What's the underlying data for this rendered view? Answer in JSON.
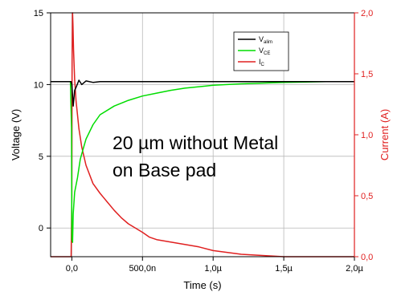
{
  "chart_data": {
    "type": "line",
    "xlabel": "Time (s)",
    "ylabel_left": "Voltage (V)",
    "ylabel_right": "Current (A)",
    "xlim": [
      -1.5e-07,
      2e-06
    ],
    "ylim_left": [
      -2,
      15
    ],
    "ylim_right": [
      0,
      2.0
    ],
    "x_ticks": [
      {
        "value": 0,
        "label": "0,0"
      },
      {
        "value": 5e-07,
        "label": "500,0n"
      },
      {
        "value": 1e-06,
        "label": "1,0µ"
      },
      {
        "value": 1.5e-06,
        "label": "1,5µ"
      },
      {
        "value": 2e-06,
        "label": "2,0µ"
      }
    ],
    "y_ticks_left": [
      {
        "value": 0,
        "label": "0"
      },
      {
        "value": 5,
        "label": "5"
      },
      {
        "value": 10,
        "label": "10"
      },
      {
        "value": 15,
        "label": "15"
      }
    ],
    "y_ticks_right": [
      {
        "value": 0.0,
        "label": "0,0"
      },
      {
        "value": 0.5,
        "label": "0,5"
      },
      {
        "value": 1.0,
        "label": "1,0"
      },
      {
        "value": 1.5,
        "label": "1,5"
      },
      {
        "value": 2.0,
        "label": "2,0"
      }
    ],
    "grid": true,
    "legend_position": "top-right",
    "annotation": [
      "20 µm without Metal",
      "on Base pad"
    ],
    "series": [
      {
        "name": "V_alim",
        "label_main": "V",
        "label_sub": "alim",
        "axis": "left",
        "color": "#000000",
        "x": [
          -1.5e-07,
          -5e-09,
          0,
          1e-08,
          2e-08,
          3e-08,
          5e-08,
          7e-08,
          1e-07,
          1.5e-07,
          2e-07,
          3e-07,
          5e-07,
          1e-06,
          1.5e-06,
          2e-06
        ],
        "y": [
          10.2,
          10.2,
          10.0,
          8.5,
          9.6,
          9.8,
          10.3,
          10.0,
          10.25,
          10.15,
          10.2,
          10.2,
          10.2,
          10.2,
          10.2,
          10.2
        ]
      },
      {
        "name": "V_CE",
        "label_main": "V",
        "label_sub": "CE",
        "axis": "left",
        "color": "#00dd00",
        "x": [
          -1.5e-07,
          -1e-08,
          -2e-09,
          0,
          5e-09,
          1e-08,
          2e-08,
          4e-08,
          6e-08,
          8e-08,
          1e-07,
          1.5e-07,
          2e-07,
          3e-07,
          4e-07,
          5e-07,
          6e-07,
          7e-07,
          8e-07,
          1e-06,
          1.2e-06,
          1.5e-06,
          1.8e-06,
          2e-06
        ],
        "y": [
          10.2,
          10.2,
          7.0,
          -0.8,
          -1.0,
          1.0,
          2.5,
          3.5,
          4.8,
          5.5,
          6.2,
          7.2,
          7.9,
          8.5,
          8.9,
          9.2,
          9.4,
          9.6,
          9.75,
          9.95,
          10.05,
          10.15,
          10.2,
          10.2
        ]
      },
      {
        "name": "I_C",
        "label_main": "I",
        "label_sub": "C",
        "axis": "right",
        "color": "#e02020",
        "x": [
          -1.5e-07,
          -5e-09,
          0,
          2e-09,
          5e-09,
          8e-09,
          1.2e-08,
          2e-08,
          3e-08,
          5e-08,
          7e-08,
          1e-07,
          1.5e-07,
          2e-07,
          2.5e-07,
          3e-07,
          3.5e-07,
          4e-07,
          5e-07,
          5.5e-07,
          6e-07,
          7e-07,
          8e-07,
          9e-07,
          1e-06,
          1.2e-06,
          1.5e-06,
          2e-06
        ],
        "y": [
          0.0,
          0.0,
          0.5,
          1.6,
          2.0,
          1.9,
          1.7,
          1.45,
          1.28,
          1.05,
          0.9,
          0.75,
          0.6,
          0.52,
          0.45,
          0.38,
          0.32,
          0.27,
          0.2,
          0.16,
          0.14,
          0.12,
          0.1,
          0.08,
          0.05,
          0.02,
          0.0,
          0.0
        ]
      }
    ]
  }
}
